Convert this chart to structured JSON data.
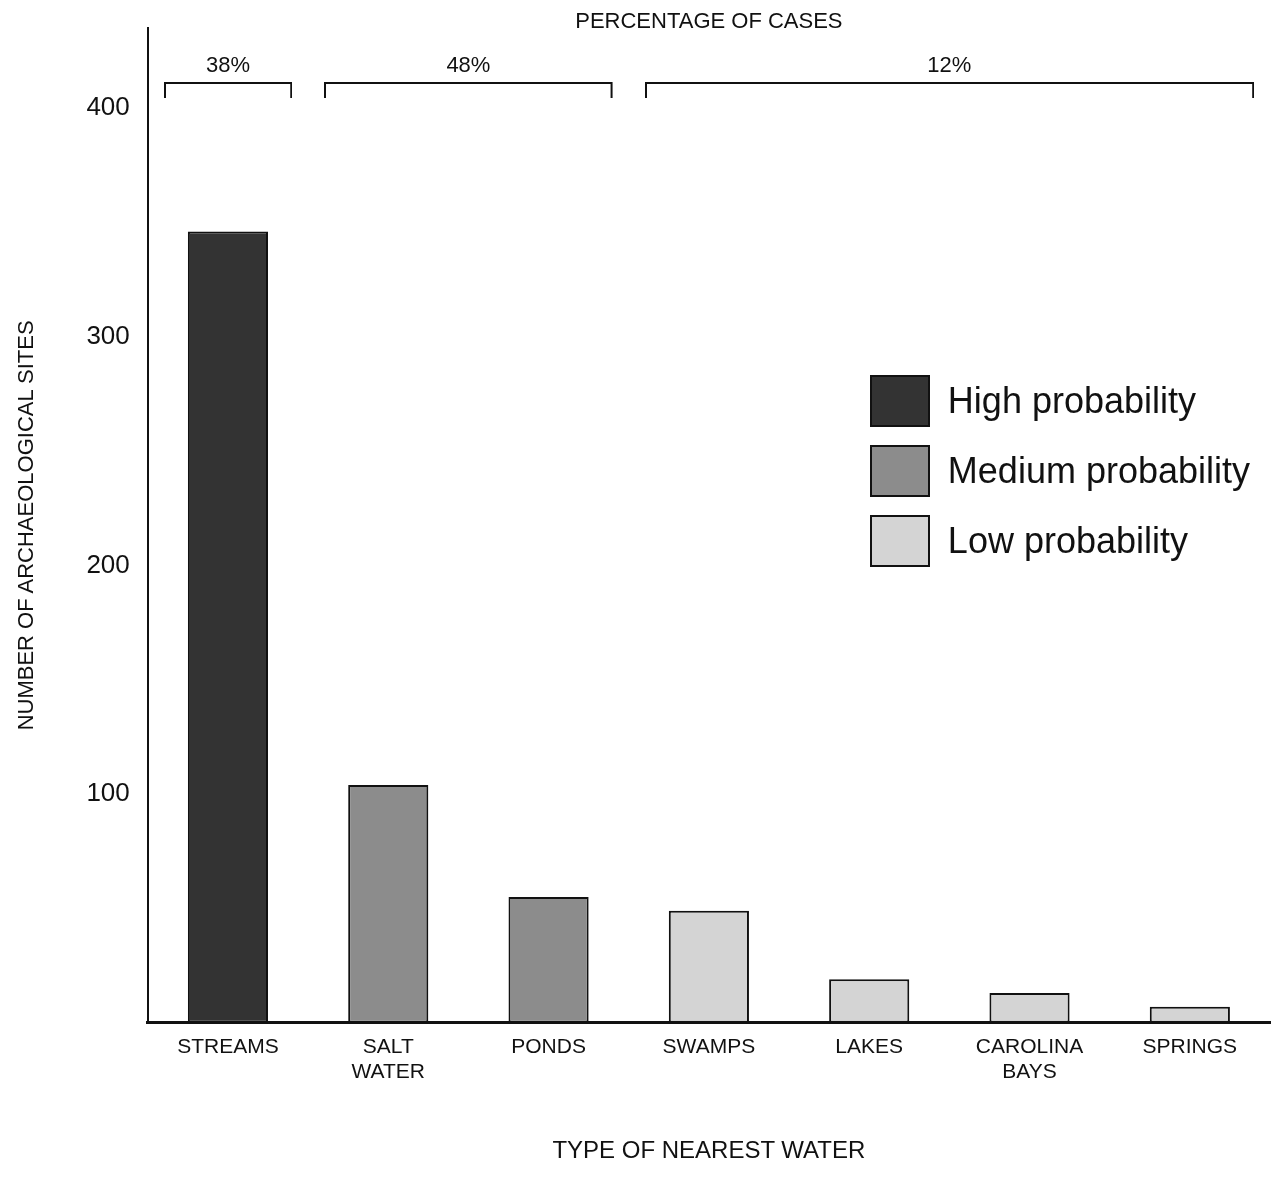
{
  "chart_data": {
    "type": "bar",
    "stacked": true,
    "xlabel": "TYPE OF NEAREST WATER",
    "ylabel": "NUMBER OF ARCHAEOLOGICAL SITES",
    "categories": [
      "STREAMS",
      "SALT WATER",
      "PONDS",
      "SWAMPS",
      "LAKES",
      "CAROLINA BAYS",
      "SPRINGS"
    ],
    "series": [
      {
        "name": "High probability",
        "color": "#333333",
        "values": [
          346,
          null,
          null,
          null,
          null,
          null,
          null
        ]
      },
      {
        "name": "Medium probability",
        "color": "#8c8c8c",
        "values": [
          null,
          104,
          55,
          null,
          null,
          null,
          null
        ]
      },
      {
        "name": "Low probability",
        "color": "#d4d4d4",
        "values": [
          null,
          null,
          null,
          49,
          19,
          13,
          7
        ]
      }
    ],
    "ylim": [
      0,
      435
    ],
    "yticks": [
      100,
      200,
      300,
      400
    ],
    "grid": false,
    "legend": "right",
    "annotations": [
      "PERCENTAGE OF CASES",
      "38%",
      "48%",
      "12%"
    ]
  }
}
